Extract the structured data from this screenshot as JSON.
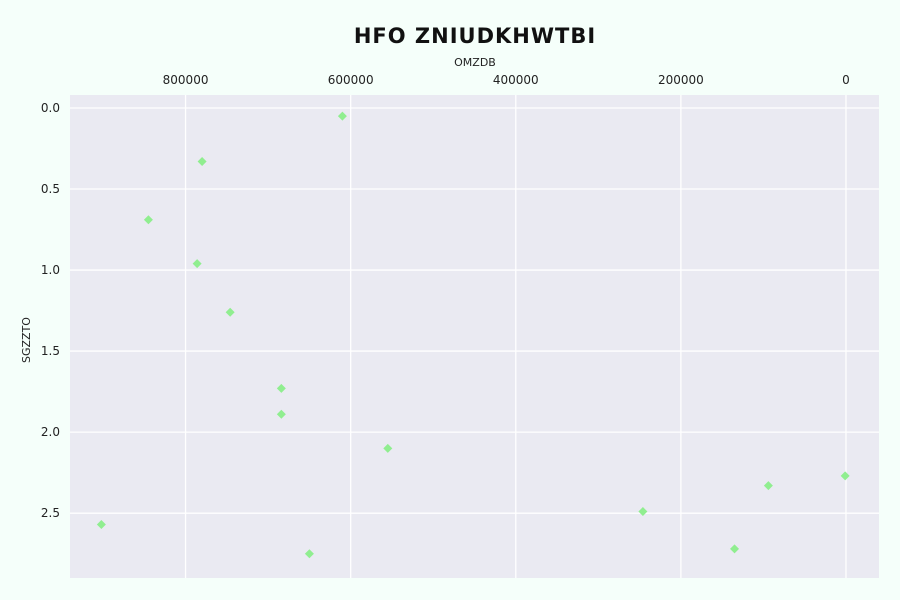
{
  "chart_data": {
    "type": "scatter",
    "title": "HFO ZNIUDKHWTBI",
    "xlabel": "OMZDB",
    "ylabel": "SGZZTO",
    "x_axis_position": "top",
    "x_inverted": true,
    "y_inverted": true,
    "xlim": [
      940000,
      -40000
    ],
    "ylim": [
      -0.08,
      2.9
    ],
    "x_ticks": [
      800000,
      600000,
      400000,
      200000,
      0
    ],
    "x_tick_labels": [
      "800000",
      "600000",
      "400000",
      "200000",
      "0"
    ],
    "y_ticks": [
      0.0,
      0.5,
      1.0,
      1.5,
      2.0,
      2.5
    ],
    "y_tick_labels": [
      "0.0",
      "0.5",
      "1.0",
      "1.5",
      "2.0",
      "2.5"
    ],
    "grid": true,
    "marker": "diamond",
    "color": "#90ee90",
    "background": "#eaeaf2",
    "points": [
      {
        "x": 610000,
        "y": 0.05
      },
      {
        "x": 780000,
        "y": 0.33
      },
      {
        "x": 845000,
        "y": 0.69
      },
      {
        "x": 786000,
        "y": 0.96
      },
      {
        "x": 746000,
        "y": 1.26
      },
      {
        "x": 684000,
        "y": 1.73
      },
      {
        "x": 684000,
        "y": 1.89
      },
      {
        "x": 555000,
        "y": 2.1
      },
      {
        "x": 902000,
        "y": 2.57
      },
      {
        "x": 650000,
        "y": 2.75
      },
      {
        "x": 246000,
        "y": 2.49
      },
      {
        "x": 135000,
        "y": 2.72
      },
      {
        "x": 94000,
        "y": 2.33
      },
      {
        "x": 1000,
        "y": 2.27
      }
    ]
  }
}
